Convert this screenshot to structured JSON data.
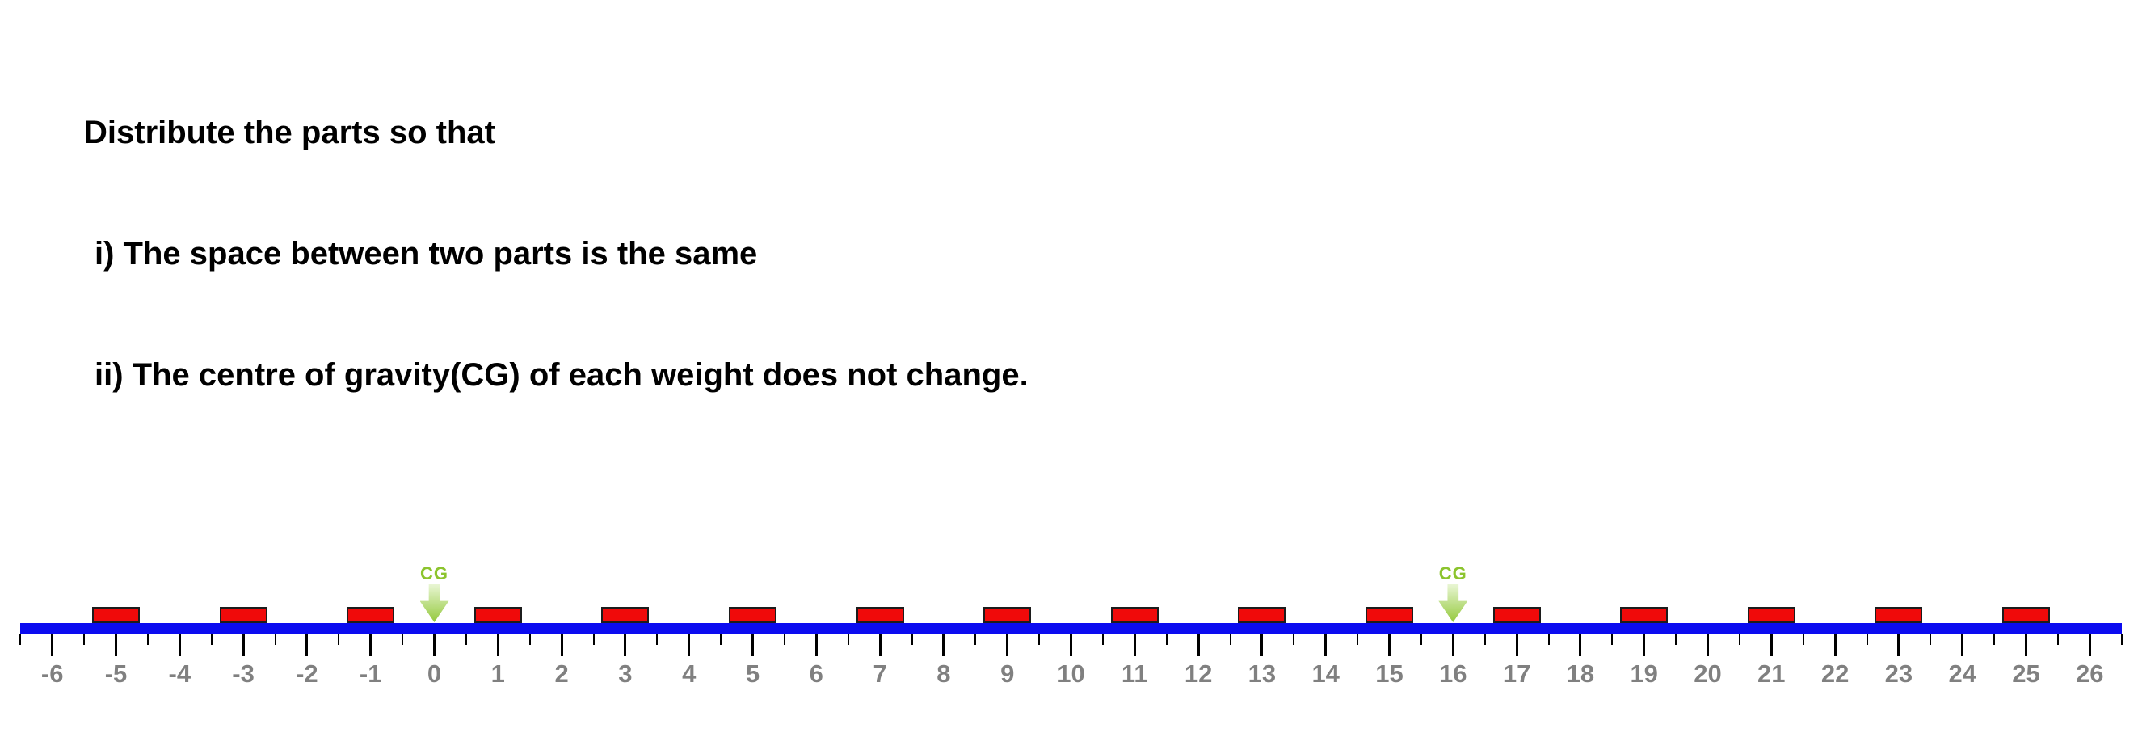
{
  "instructions": {
    "line1": "Distribute the parts so that",
    "line2": "i) The space between two parts is the same",
    "line3": "ii) The centre of gravity(CG) of each weight does not change."
  },
  "number_line": {
    "min": -6,
    "max": 26,
    "minor_step": 0.5,
    "tick_labels": [
      "-6",
      "-5",
      "-4",
      "-3",
      "-2",
      "-1",
      "0",
      "1",
      "2",
      "3",
      "4",
      "5",
      "6",
      "7",
      "8",
      "9",
      "10",
      "11",
      "12",
      "13",
      "14",
      "15",
      "16",
      "17",
      "18",
      "19",
      "20",
      "21",
      "22",
      "23",
      "24",
      "25",
      "26"
    ],
    "bar_color": "#0b0bf0",
    "tick_color": "#000000",
    "label_color": "#808080"
  },
  "parts": {
    "positions": [
      -5,
      -3,
      -1,
      1,
      3,
      5,
      7,
      9,
      11,
      13,
      15,
      17,
      19,
      21,
      23,
      25
    ],
    "fill_color": "#f00a0a",
    "border_color": "#1c1c1c"
  },
  "cg_markers": {
    "label": "CG",
    "positions": [
      0,
      16
    ],
    "text_color": "#8cc42e",
    "arrow_color_top": "#e9f6d4",
    "arrow_color_bottom": "#94c93d"
  }
}
